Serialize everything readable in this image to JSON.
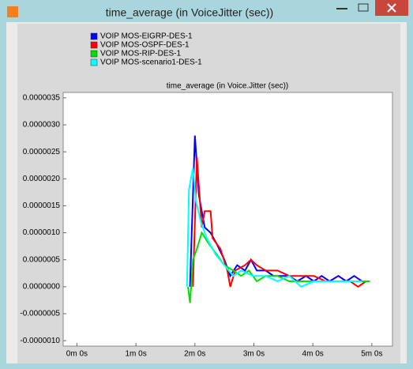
{
  "window": {
    "title": "time_average (in VoiceJitter (sec))"
  },
  "chart_data": {
    "type": "line",
    "title": "time_average (in Voice.Jitter (sec))",
    "xlim": [
      -14,
      321
    ],
    "xticks": [
      {
        "value": 0,
        "label": "0m 0s"
      },
      {
        "value": 60,
        "label": "1m 0s"
      },
      {
        "value": 120,
        "label": "2m 0s"
      },
      {
        "value": 180,
        "label": "3m 0s"
      },
      {
        "value": 240,
        "label": "4m 0s"
      },
      {
        "value": 300,
        "label": "5m 0s"
      }
    ],
    "ylim": [
      -1.1e-06,
      3.6e-06
    ],
    "yticks": [
      {
        "value": -1e-06,
        "label": "-0.0000010"
      },
      {
        "value": -5e-07,
        "label": "-0.0000005"
      },
      {
        "value": 0,
        "label": "0.0000000"
      },
      {
        "value": 5e-07,
        "label": "0.0000005"
      },
      {
        "value": 1e-06,
        "label": "0.0000010"
      },
      {
        "value": 1.5e-06,
        "label": "0.0000015"
      },
      {
        "value": 2e-06,
        "label": "0.0000020"
      },
      {
        "value": 2.5e-06,
        "label": "0.0000025"
      },
      {
        "value": 3e-06,
        "label": "0.0000030"
      },
      {
        "value": 3.5e-06,
        "label": "0.0000035"
      }
    ],
    "grid": false,
    "series": [
      {
        "name": "VOIP MOS-EIGRP-DES-1",
        "color": "#0000ff",
        "x": [
          115,
          120,
          124,
          130,
          136,
          142,
          150,
          156,
          163,
          171,
          177,
          183,
          192,
          200,
          208,
          216,
          224,
          233,
          241,
          249,
          257,
          266,
          274,
          282,
          290,
          298
        ],
        "values": [
          0,
          2.8e-06,
          1.7e-06,
          1.1e-06,
          1e-06,
          8e-07,
          5e-07,
          2e-07,
          4e-07,
          3e-07,
          5e-07,
          3e-07,
          3e-07,
          2e-07,
          2e-07,
          2e-07,
          1e-07,
          2e-07,
          1e-07,
          2e-07,
          1e-07,
          2e-07,
          1e-07,
          2e-07,
          1e-07,
          1e-07
        ]
      },
      {
        "name": "VOIP MOS-OSPF-DES-1",
        "color": "#ff0000",
        "x": [
          118,
          122,
          127,
          130,
          136,
          138,
          146,
          153,
          156,
          161,
          171,
          177,
          183,
          192,
          204,
          216,
          228,
          241,
          253,
          266,
          278,
          286,
          294,
          298
        ],
        "values": [
          0,
          2.4e-06,
          1.1e-06,
          1.4e-06,
          1.4e-06,
          9e-07,
          7e-07,
          3e-07,
          0,
          3e-07,
          4e-07,
          5e-07,
          4e-07,
          3e-07,
          3e-07,
          2e-07,
          2e-07,
          2e-07,
          1e-07,
          1e-07,
          1e-07,
          0,
          1e-07,
          1e-07
        ]
      },
      {
        "name": "VOIP MOS-RIP-DES-1",
        "color": "#00e000",
        "x": [
          113,
          115,
          118,
          122,
          127,
          134,
          142,
          150,
          159,
          167,
          175,
          183,
          192,
          204,
          216,
          233,
          249,
          266,
          282,
          298
        ],
        "values": [
          0,
          -3e-07,
          5e-07,
          7e-07,
          1e-06,
          8e-07,
          6e-07,
          4e-07,
          3e-07,
          2e-07,
          3e-07,
          1e-07,
          2e-07,
          2e-07,
          1e-07,
          1e-07,
          1e-07,
          1e-07,
          1e-07,
          1e-07
        ]
      },
      {
        "name": "VOIP MOS-scenario1-DES-1",
        "color": "#00ffff",
        "x": [
          112,
          114,
          118,
          121,
          126,
          132,
          141,
          150,
          159,
          167,
          179,
          192,
          204,
          216,
          228,
          241,
          257,
          274,
          290
        ],
        "values": [
          0,
          1.8e-06,
          2.2e-06,
          1.6e-06,
          1.2e-06,
          9e-07,
          6e-07,
          4e-07,
          2e-07,
          3e-07,
          2e-07,
          2e-07,
          1e-07,
          2e-07,
          0,
          1e-07,
          1e-07,
          1e-07,
          1e-07
        ]
      }
    ]
  }
}
